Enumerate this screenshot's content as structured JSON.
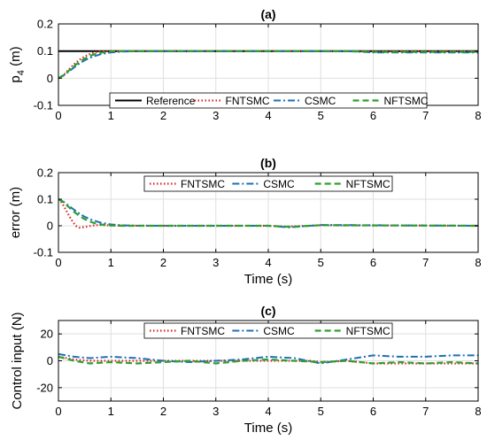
{
  "colors": {
    "reference": "#000000",
    "fntsmc": "#d62728",
    "csmc": "#1f6fb4",
    "nftsmc": "#2ca02c",
    "grid": "#dfdfdf"
  },
  "chart_data": [
    {
      "type": "line",
      "title": "(a)",
      "xlabel": "",
      "ylabel": "p_4 (m)",
      "ylabel_main": "p",
      "ylabel_sub": "4",
      "ylabel_unit": " (m)",
      "xlim": [
        0,
        8
      ],
      "ylim": [
        -0.1,
        0.2
      ],
      "xticks": [
        "0",
        "1",
        "2",
        "3",
        "4",
        "5",
        "6",
        "7",
        "8"
      ],
      "yticks": [
        "-0.1",
        "0",
        "0.1",
        "0.2"
      ],
      "grid": true,
      "legend": "bottom-center",
      "legend_entries": [
        "Reference",
        "FNTSMC",
        "CSMC",
        "NFTSMC"
      ],
      "series": [
        {
          "name": "Reference",
          "x": [
            0,
            8
          ],
          "y": [
            0.1,
            0.1
          ]
        },
        {
          "name": "FNTSMC",
          "x": [
            0,
            0.1,
            0.2,
            0.3,
            0.4,
            0.5,
            0.6,
            0.7,
            0.8,
            1.0,
            1.2,
            2,
            4,
            5.5,
            6,
            8
          ],
          "y": [
            0,
            0.012,
            0.032,
            0.052,
            0.068,
            0.08,
            0.089,
            0.095,
            0.099,
            0.101,
            0.1,
            0.1,
            0.1,
            0.1,
            0.099,
            0.099
          ]
        },
        {
          "name": "CSMC",
          "x": [
            0,
            0.1,
            0.2,
            0.3,
            0.4,
            0.5,
            0.6,
            0.7,
            0.8,
            1.0,
            1.2,
            1.5,
            2,
            4,
            5.5,
            6,
            8
          ],
          "y": [
            0,
            0.01,
            0.025,
            0.04,
            0.054,
            0.066,
            0.075,
            0.082,
            0.088,
            0.095,
            0.098,
            0.1,
            0.1,
            0.1,
            0.1,
            0.095,
            0.095
          ]
        },
        {
          "name": "NFTSMC",
          "x": [
            0,
            0.1,
            0.2,
            0.3,
            0.4,
            0.5,
            0.6,
            0.7,
            0.8,
            1.0,
            1.2,
            2,
            4,
            5.5,
            6,
            8
          ],
          "y": [
            0,
            0.011,
            0.028,
            0.045,
            0.06,
            0.072,
            0.082,
            0.089,
            0.094,
            0.099,
            0.1,
            0.1,
            0.1,
            0.1,
            0.097,
            0.097
          ]
        }
      ]
    },
    {
      "type": "line",
      "title": "(b)",
      "xlabel": "Time (s)",
      "ylabel": "error (m)",
      "xlim": [
        0,
        8
      ],
      "ylim": [
        -0.1,
        0.2
      ],
      "xticks": [
        "0",
        "1",
        "2",
        "3",
        "4",
        "5",
        "6",
        "7",
        "8"
      ],
      "yticks": [
        "-0.1",
        "0",
        "0.1",
        "0.2"
      ],
      "grid": true,
      "legend": "top-center",
      "legend_entries": [
        "FNTSMC",
        "CSMC",
        "NFTSMC"
      ],
      "series": [
        {
          "name": "FNTSMC",
          "x": [
            0,
            0.05,
            0.1,
            0.15,
            0.2,
            0.25,
            0.3,
            0.35,
            0.4,
            0.5,
            0.6,
            0.7,
            0.8,
            1.0,
            2,
            4,
            4.3,
            4.5,
            5,
            8
          ],
          "y": [
            0.1,
            0.09,
            0.075,
            0.057,
            0.039,
            0.022,
            0.008,
            -0.003,
            -0.007,
            -0.005,
            -0.001,
            0.002,
            0.003,
            0.001,
            0,
            0,
            -0.003,
            -0.002,
            0.002,
            0
          ]
        },
        {
          "name": "CSMC",
          "x": [
            0,
            0.1,
            0.2,
            0.3,
            0.4,
            0.5,
            0.6,
            0.7,
            0.8,
            1.0,
            1.2,
            1.5,
            2,
            4,
            4.4,
            5,
            8
          ],
          "y": [
            0.1,
            0.09,
            0.075,
            0.06,
            0.046,
            0.034,
            0.025,
            0.018,
            0.012,
            0.005,
            0.002,
            0,
            0,
            0,
            -0.006,
            0.003,
            0
          ]
        },
        {
          "name": "NFTSMC",
          "x": [
            0,
            0.1,
            0.2,
            0.3,
            0.4,
            0.5,
            0.6,
            0.7,
            0.8,
            1.0,
            1.2,
            2,
            4,
            4.4,
            5,
            8
          ],
          "y": [
            0.1,
            0.088,
            0.07,
            0.052,
            0.037,
            0.025,
            0.016,
            0.009,
            0.005,
            0.001,
            0,
            0,
            0,
            -0.004,
            0.002,
            0
          ]
        }
      ]
    },
    {
      "type": "line",
      "title": "(c)",
      "xlabel": "Time (s)",
      "ylabel": "Control input (N)",
      "xlim": [
        0,
        8
      ],
      "ylim": [
        -30,
        30
      ],
      "xticks": [
        "0",
        "1",
        "2",
        "3",
        "4",
        "5",
        "6",
        "7",
        "8"
      ],
      "yticks": [
        "-20",
        "0",
        "20"
      ],
      "grid": true,
      "legend": "top-center",
      "legend_entries": [
        "FNTSMC",
        "CSMC",
        "NFTSMC"
      ],
      "series": [
        {
          "name": "FNTSMC",
          "x": [
            0,
            0.3,
            0.6,
            1,
            2,
            3,
            4,
            4.8,
            5,
            5.5,
            6,
            7,
            8
          ],
          "y": [
            3,
            1,
            0,
            0,
            0,
            0,
            0,
            0,
            -1,
            0,
            -2,
            -2,
            -2
          ]
        },
        {
          "name": "CSMC",
          "x": [
            0,
            0.3,
            0.6,
            1,
            1.5,
            2,
            2.5,
            3,
            3.5,
            4,
            4.5,
            5,
            5.5,
            6,
            6.5,
            7,
            7.5,
            8
          ],
          "y": [
            5,
            3,
            2,
            3,
            2,
            0,
            -1,
            0,
            1,
            3,
            2,
            -2,
            1,
            4,
            3,
            3,
            4,
            4
          ]
        },
        {
          "name": "NFTSMC",
          "x": [
            0,
            0.3,
            0.6,
            1,
            1.5,
            2,
            2.5,
            3,
            3.5,
            4,
            4.5,
            5,
            5.5,
            6,
            6.5,
            7,
            7.5,
            8
          ],
          "y": [
            3,
            0,
            -2,
            -1,
            -2,
            -1,
            0,
            -2,
            0,
            1,
            0,
            -1,
            0,
            -2,
            -1,
            -2,
            -1,
            -2
          ]
        }
      ]
    }
  ]
}
